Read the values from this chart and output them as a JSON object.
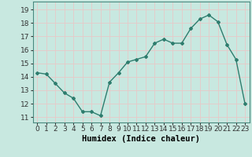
{
  "x": [
    0,
    1,
    2,
    3,
    4,
    5,
    6,
    7,
    8,
    9,
    10,
    11,
    12,
    13,
    14,
    15,
    16,
    17,
    18,
    19,
    20,
    21,
    22,
    23
  ],
  "y": [
    14.3,
    14.2,
    13.5,
    12.8,
    12.4,
    11.4,
    11.4,
    11.1,
    13.6,
    14.3,
    15.1,
    15.3,
    15.5,
    16.5,
    16.8,
    16.5,
    16.5,
    17.6,
    18.3,
    18.6,
    18.1,
    16.4,
    15.3,
    12.0
  ],
  "line_color": "#2e7d6e",
  "marker": "D",
  "marker_size": 2.0,
  "linewidth": 1.0,
  "bg_color": "#c8e8e0",
  "grid_color": "#e8c8c8",
  "xlabel": "Humidex (Indice chaleur)",
  "xlabel_fontsize": 7.5,
  "ylabel_ticks": [
    11,
    12,
    13,
    14,
    15,
    16,
    17,
    18,
    19
  ],
  "xlim": [
    -0.5,
    23.5
  ],
  "ylim": [
    10.6,
    19.6
  ],
  "xtick_labels": [
    "0",
    "1",
    "2",
    "3",
    "4",
    "5",
    "6",
    "7",
    "8",
    "9",
    "10",
    "11",
    "12",
    "13",
    "14",
    "15",
    "16",
    "17",
    "18",
    "19",
    "20",
    "21",
    "22",
    "23"
  ],
  "tick_fontsize": 6.5,
  "spine_color": "#4a8a80"
}
